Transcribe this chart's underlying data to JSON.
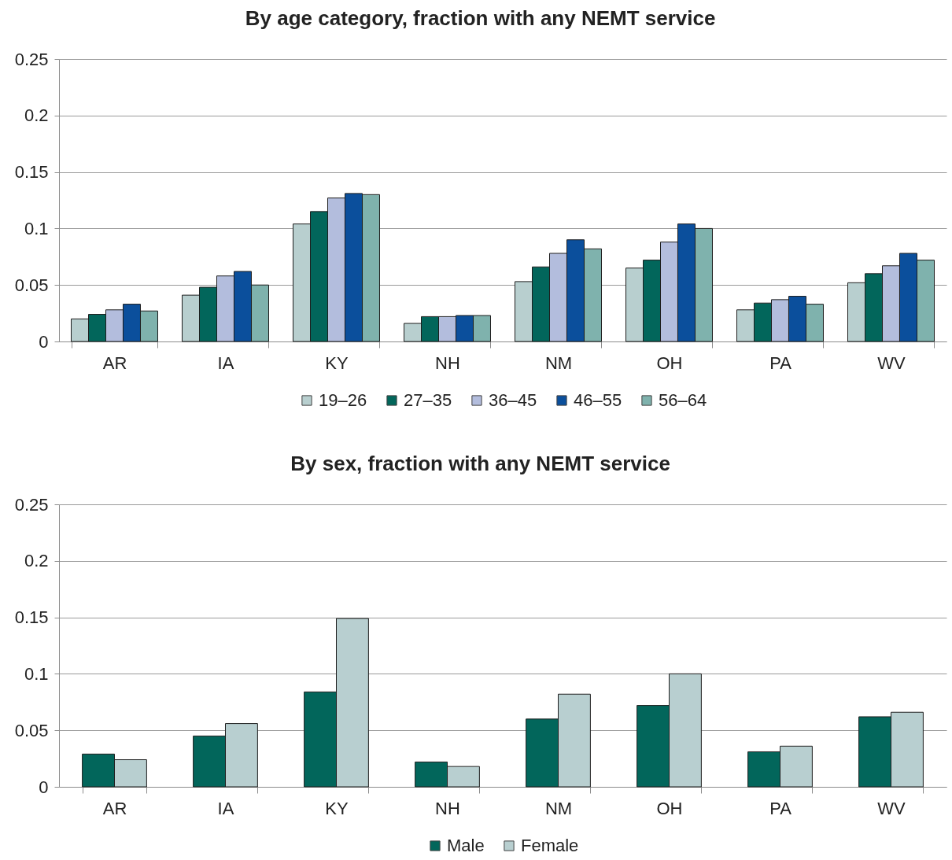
{
  "chart_data": [
    {
      "type": "bar",
      "title": "By age category, fraction with any NEMT service",
      "categories": [
        "AR",
        "IA",
        "KY",
        "NH",
        "NM",
        "OH",
        "PA",
        "WV"
      ],
      "series": [
        {
          "name": "19–26",
          "color": "#b8cfcf",
          "values": [
            0.02,
            0.041,
            0.104,
            0.016,
            0.053,
            0.065,
            0.028,
            0.052
          ]
        },
        {
          "name": "27–35",
          "color": "#02665b",
          "values": [
            0.024,
            0.048,
            0.115,
            0.022,
            0.066,
            0.072,
            0.034,
            0.06
          ]
        },
        {
          "name": "36–45",
          "color": "#b3bddd",
          "values": [
            0.028,
            0.058,
            0.127,
            0.022,
            0.078,
            0.088,
            0.037,
            0.067
          ]
        },
        {
          "name": "46–55",
          "color": "#0b4f9c",
          "values": [
            0.033,
            0.062,
            0.131,
            0.023,
            0.09,
            0.104,
            0.04,
            0.078
          ]
        },
        {
          "name": "56–64",
          "color": "#7fb2ad",
          "values": [
            0.027,
            0.05,
            0.13,
            0.023,
            0.082,
            0.1,
            0.033,
            0.072
          ]
        }
      ],
      "ylim": [
        0,
        0.25
      ],
      "yticks": [
        0,
        0.05,
        0.1,
        0.15,
        0.2,
        0.25
      ],
      "grid": "y",
      "legend": "bottom"
    },
    {
      "type": "bar",
      "title": "By sex, fraction with any NEMT service",
      "categories": [
        "AR",
        "IA",
        "KY",
        "NH",
        "NM",
        "OH",
        "PA",
        "WV"
      ],
      "series": [
        {
          "name": "Male",
          "color": "#02665b",
          "values": [
            0.029,
            0.045,
            0.084,
            0.022,
            0.06,
            0.072,
            0.031,
            0.062
          ]
        },
        {
          "name": "Female",
          "color": "#b8cfd0",
          "values": [
            0.024,
            0.056,
            0.149,
            0.018,
            0.082,
            0.1,
            0.036,
            0.066
          ]
        }
      ],
      "ylim": [
        0,
        0.25
      ],
      "yticks": [
        0,
        0.05,
        0.1,
        0.15,
        0.2,
        0.25
      ],
      "grid": "y",
      "legend": "bottom"
    }
  ]
}
